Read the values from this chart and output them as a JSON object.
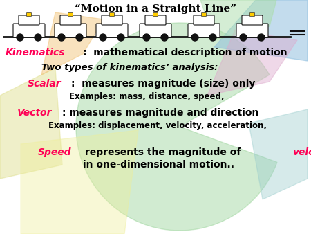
{
  "bg_color": "#ffffff",
  "title": "“Motion in a Straight Line”",
  "title_color": "#000000",
  "title_fontsize": 11,
  "line1_p1": "Kinematics",
  "line1_p2": ":  mathematical description of motion",
  "line1_c1": "#ff0055",
  "line1_c2": "#000000",
  "line1_fs": 10,
  "line2": "Two types of kinematics’ analysis:",
  "line2_color": "#000000",
  "line2_fs": 9.5,
  "line3_p1": "Scalar",
  "line3_p2": ":  measures magnitude (size) only",
  "line3_c1": "#ff0055",
  "line3_c2": "#000000",
  "line3_fs": 10,
  "line4": "Examples: mass, distance, speed,",
  "line4_color": "#000000",
  "line4_fs": 8.5,
  "line5_p1": "Vector",
  "line5_p2": ": measures magnitude and direction",
  "line5_c1": "#ff0055",
  "line5_c2": "#000000",
  "line5_fs": 10,
  "line6": "Examples: displacement, velocity, acceleration,",
  "line6_color": "#000000",
  "line6_fs": 8.5,
  "line7_p1": "Speed",
  "line7_p2": " represents the magnitude of ",
  "line7_p3": "velocity",
  "line7_c1": "#ff0055",
  "line7_c2": "#000000",
  "line7_c3": "#ff0055",
  "line7_fs": 10,
  "line8": "in one-dimensional motion..",
  "line8_color": "#000000",
  "line8_fs": 10
}
